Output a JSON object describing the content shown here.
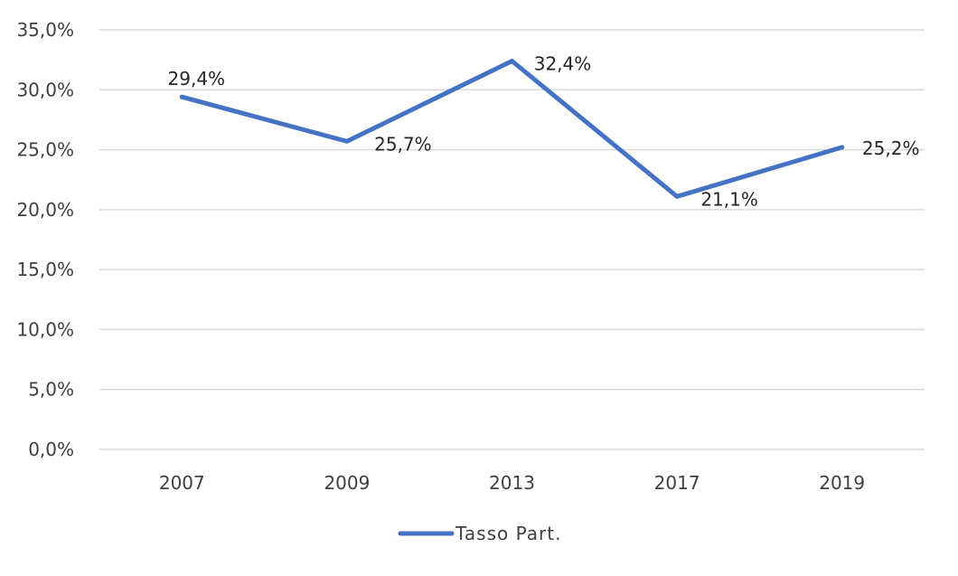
{
  "chart_data": {
    "type": "line",
    "categories": [
      "2007",
      "2009",
      "2013",
      "2017",
      "2019"
    ],
    "series": [
      {
        "name": "Tasso Part.",
        "values": [
          29.4,
          25.7,
          32.4,
          21.1,
          25.2
        ],
        "data_labels": [
          "29,4%",
          "25,7%",
          "32,4%",
          "21,1%",
          "25,2%"
        ],
        "color": "#4472c4"
      }
    ],
    "title": "",
    "xlabel": "",
    "ylabel": "",
    "ylim": [
      0,
      35
    ],
    "y_ticks": [
      0,
      5,
      10,
      15,
      20,
      25,
      30,
      35
    ],
    "y_tick_labels": [
      "0,0%",
      "5,0%",
      "10,0%",
      "15,0%",
      "20,0%",
      "25,0%",
      "30,0%",
      "35,0%"
    ],
    "grid": true,
    "legend": {
      "position": "bottom",
      "entries": [
        "Tasso Part."
      ]
    }
  }
}
